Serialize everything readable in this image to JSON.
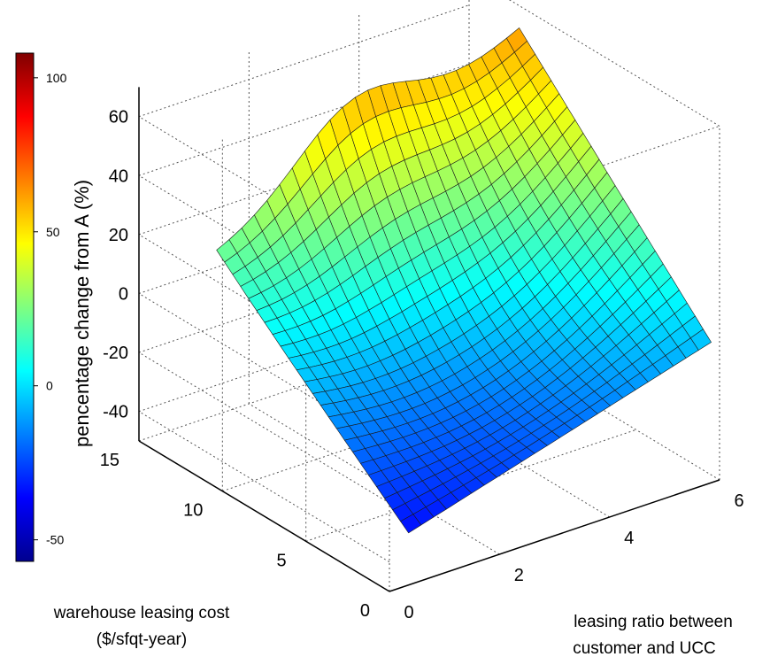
{
  "chart_data": {
    "type": "surface",
    "title": "",
    "x_axis": {
      "label_lines": [
        "leasing ratio between",
        "customer and UCC"
      ],
      "range": [
        0,
        6
      ],
      "ticks": [
        "0",
        "2",
        "4",
        "6"
      ]
    },
    "y_axis": {
      "label_lines": [
        "warehouse leasing cost",
        "($/sfqt-year)"
      ],
      "range": [
        0,
        15
      ],
      "ticks": [
        "0",
        "5",
        "10",
        "15"
      ]
    },
    "z_axis": {
      "label": "pencentage change from A (%)",
      "range": [
        -50,
        70
      ],
      "ticks": [
        "-40",
        "-20",
        "0",
        "20",
        "40",
        "60"
      ]
    },
    "colorbar": {
      "range": [
        -57,
        108
      ],
      "ticks": [
        "-50",
        "0",
        "50",
        "100"
      ],
      "colormap": "jet"
    },
    "surface": {
      "x_range": [
        0.5,
        6
      ],
      "y_range": [
        0.5,
        12
      ],
      "grid_size": [
        25,
        25
      ],
      "corner_values": {
        "x_min_y_min": -35,
        "x_max_y_min": -5,
        "x_min_y_max": 20,
        "x_max_y_max": 62
      }
    }
  }
}
